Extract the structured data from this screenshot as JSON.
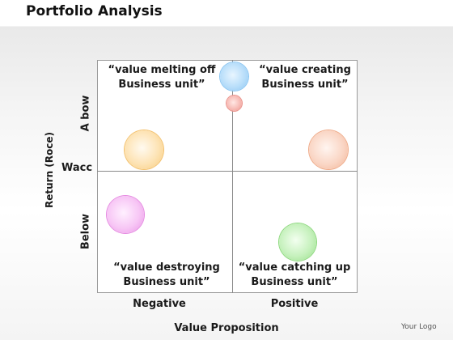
{
  "title": "Portfolio Analysis",
  "quadrants": {
    "top_left": {
      "line1": "“value melting off",
      "line2": "Business unit”"
    },
    "top_right": {
      "line1": "“value creating",
      "line2": "Business unit”"
    },
    "bottom_left": {
      "line1": "“value destroying",
      "line2": "Business unit”"
    },
    "bottom_right": {
      "line1": "“value catching up",
      "line2": "Business unit”"
    }
  },
  "y_axis": {
    "title": "Return (Roce)",
    "above": "A bow",
    "below": "Below",
    "threshold": "Wacc"
  },
  "x_axis": {
    "title": "Value Proposition",
    "negative": "Negative",
    "positive": "Positive"
  },
  "bubbles": [
    {
      "name": "blue",
      "color": "#b8defa"
    },
    {
      "name": "pink-small",
      "color": "#f6b7b1"
    },
    {
      "name": "yellow",
      "color": "#fde3b4"
    },
    {
      "name": "peach",
      "color": "#fad6c5"
    },
    {
      "name": "magenta",
      "color": "#f7c6f5"
    },
    {
      "name": "green",
      "color": "#c6f1bd"
    }
  ],
  "footer": {
    "logo": "Your Logo"
  }
}
